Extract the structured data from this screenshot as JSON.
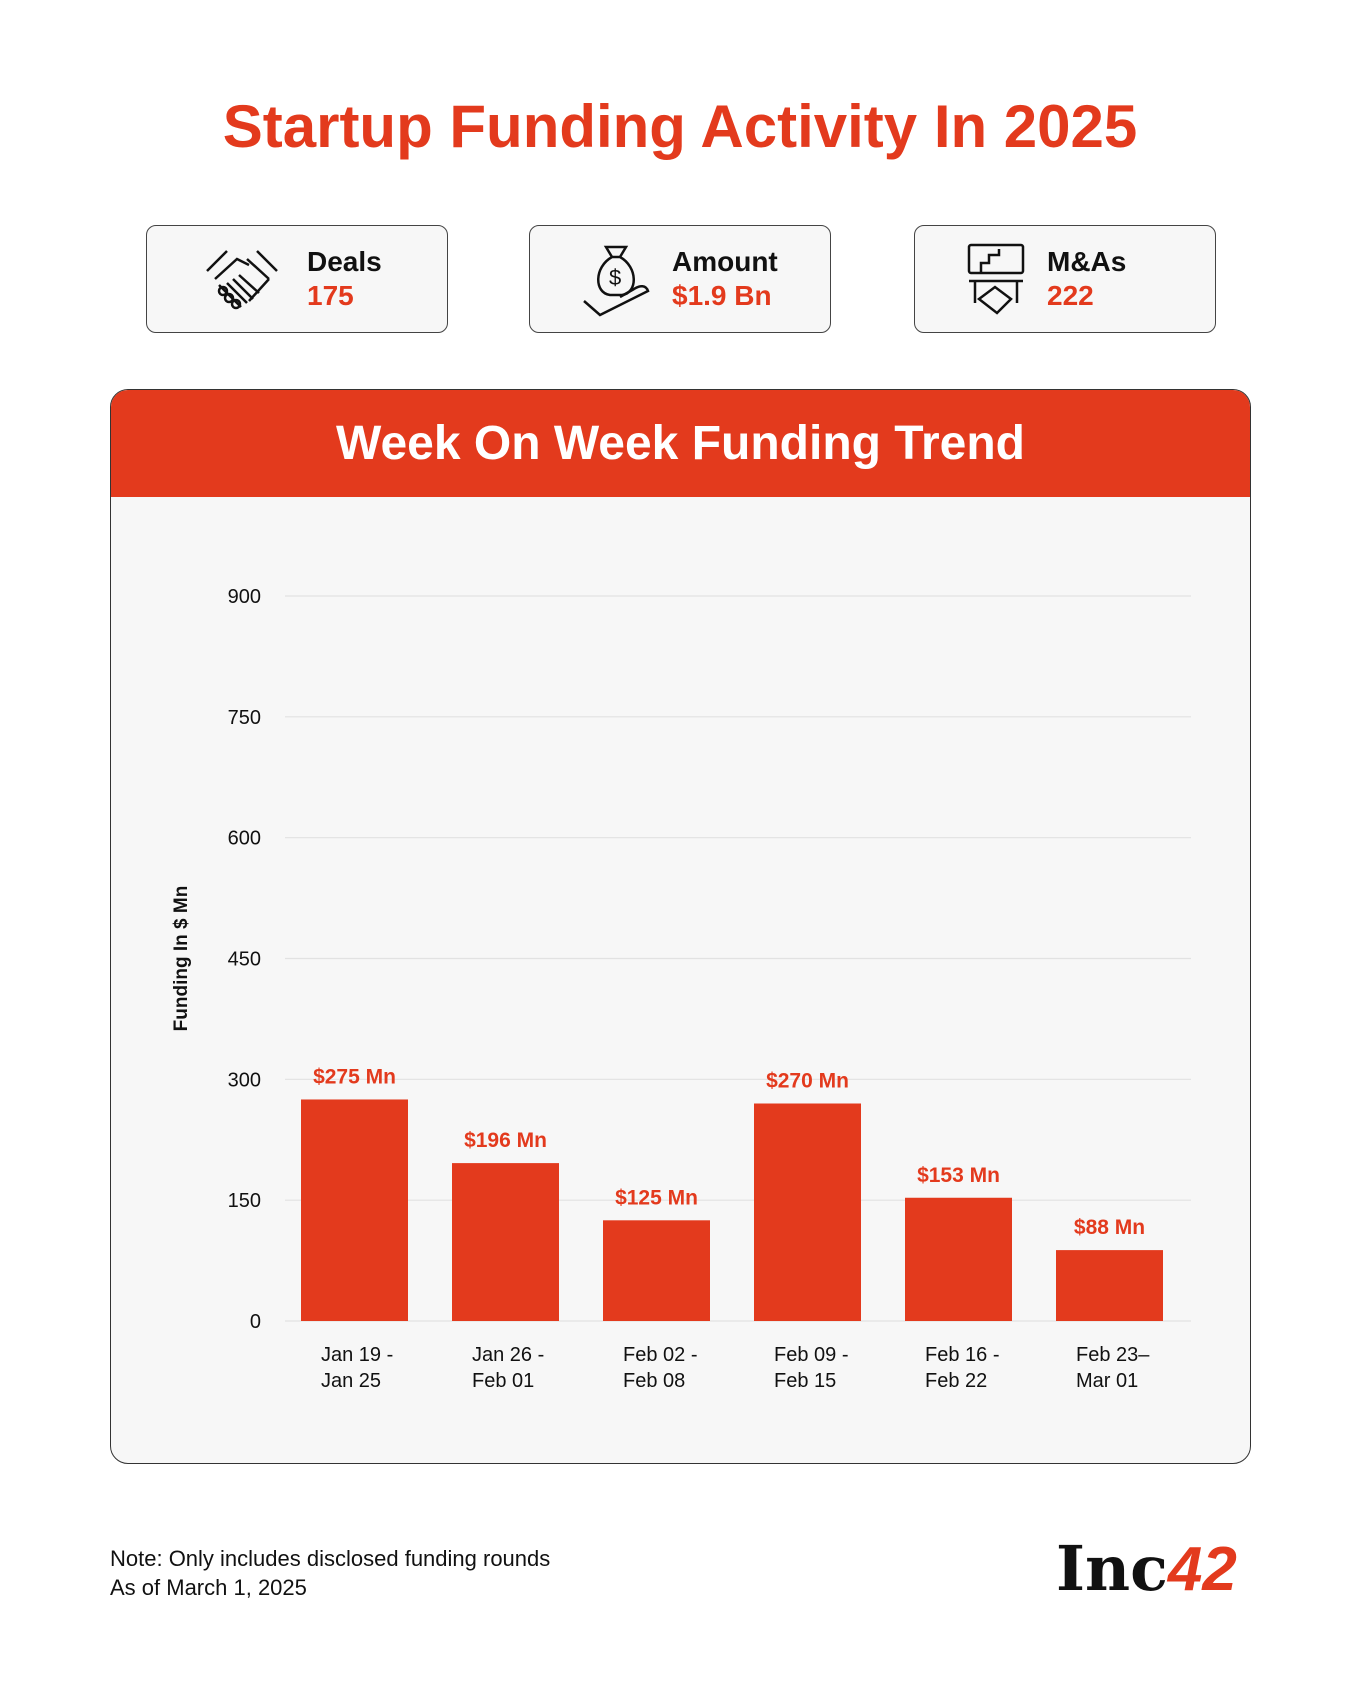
{
  "title": "Startup Funding Activity In 2025",
  "cards": [
    {
      "label": "Deals",
      "value": "175",
      "icon": "handshake-icon"
    },
    {
      "label": "Amount",
      "value": "$1.9 Bn",
      "icon": "money-bag-hand-icon"
    },
    {
      "label": "M&As",
      "value": "222",
      "icon": "puzzle-handshake-icon"
    }
  ],
  "colors": {
    "accent": "#e33a1d",
    "panel": "#f7f7f7"
  },
  "chart_data": {
    "type": "bar",
    "title": "Week On Week Funding Trend",
    "ylabel": "Funding In $ Mn",
    "xlabel": "",
    "ylim": [
      0,
      900
    ],
    "yticks": [
      "0",
      "150",
      "300",
      "450",
      "600",
      "750",
      "900"
    ],
    "categories": [
      [
        "Jan 19 -",
        "Jan 25"
      ],
      [
        "Jan 26 -",
        "Feb 01"
      ],
      [
        "Feb 02 -",
        "Feb 08"
      ],
      [
        "Feb 09 -",
        "Feb 15"
      ],
      [
        "Feb 16 -",
        "Feb 22"
      ],
      [
        "Feb 23–",
        "Mar 01"
      ]
    ],
    "values": [
      275,
      196,
      125,
      270,
      153,
      88
    ],
    "data_labels": [
      "$275 Mn",
      "$196 Mn",
      "$125 Mn",
      "$270 Mn",
      "$153 Mn",
      "$88 Mn"
    ],
    "grid": true
  },
  "footer": {
    "note": "Note: Only includes disclosed funding rounds",
    "asof": "As of March 1, 2025",
    "logo": "Inc42"
  }
}
